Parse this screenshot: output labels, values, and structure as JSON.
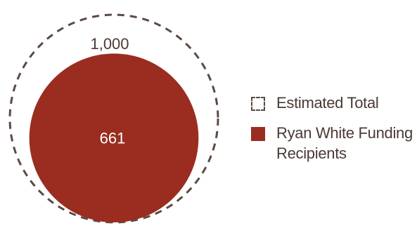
{
  "chart_data": {
    "type": "nested-circle",
    "title": "",
    "series": [
      {
        "name": "Estimated Total",
        "value": 1000,
        "label": "1,000",
        "style": "dashed-outline",
        "color": "#5b4a43"
      },
      {
        "name": "Ryan White Funding Recipients",
        "value": 661,
        "label": "661",
        "style": "filled",
        "color": "#9a2d20"
      }
    ],
    "legend": {
      "placement": "right",
      "items": [
        "Estimated Total",
        "Ryan White Funding\nRecipients"
      ]
    },
    "colors": {
      "outline": "#5b4a43",
      "fill": "#9a2d20",
      "outer_label": "#4a3a35",
      "inner_label": "#ffffff"
    }
  }
}
